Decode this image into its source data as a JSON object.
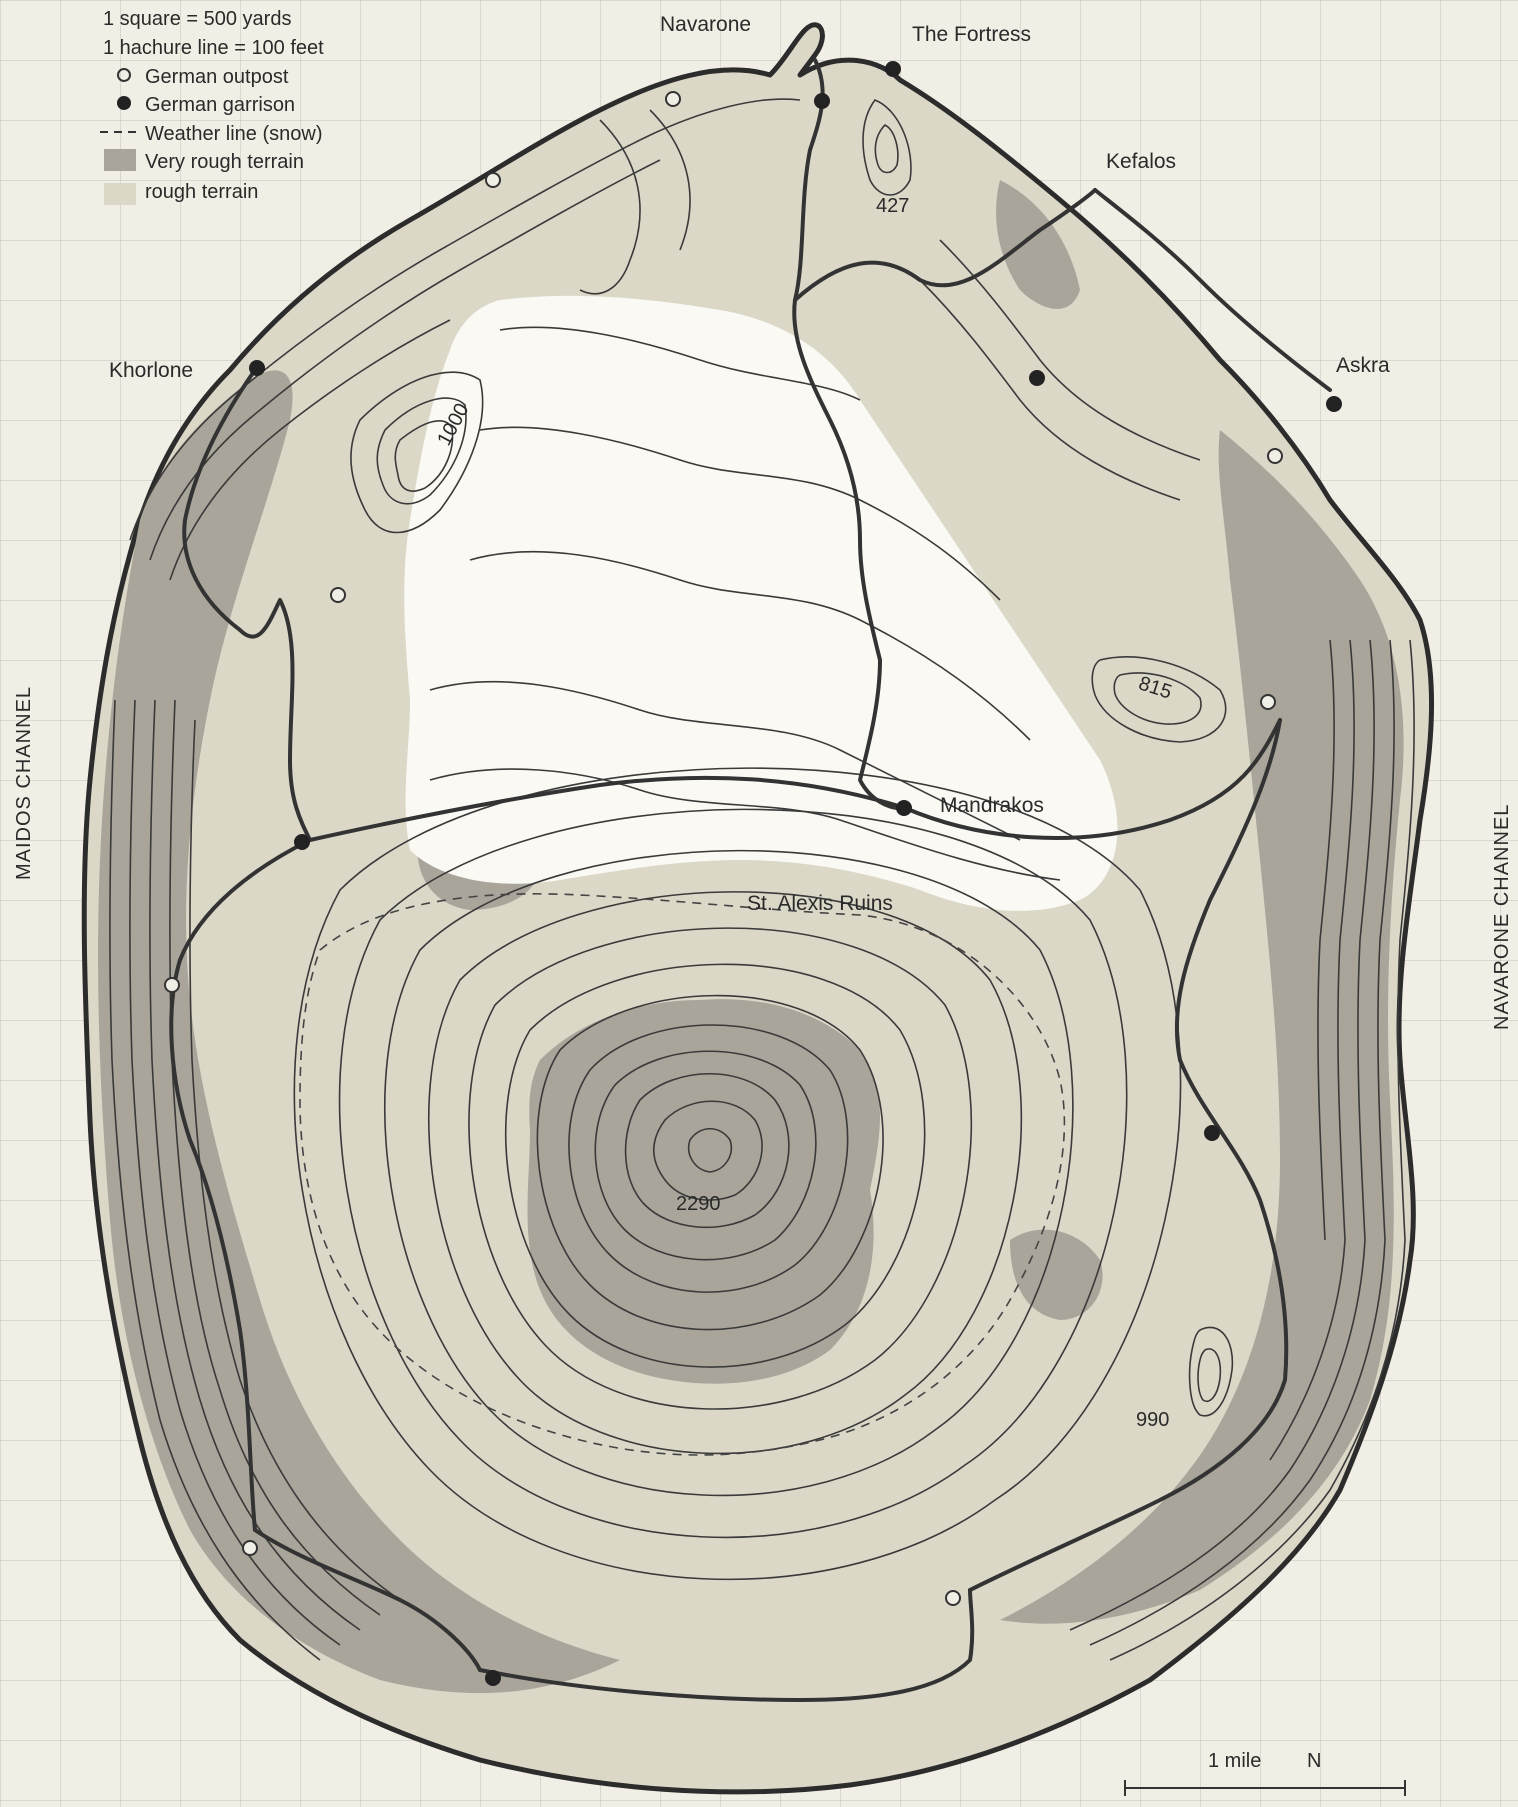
{
  "legend": {
    "scale_square": "1 square = 500 yards",
    "scale_hachure": "1 hachure line = 100 feet",
    "outpost": "German outpost",
    "garrison": "German garrison",
    "weather_line": "Weather line (snow)",
    "very_rough": "Very rough terrain",
    "rough": "rough terrain"
  },
  "places": {
    "navarone": "Navarone",
    "fortress": "The Fortress",
    "kefalos": "Kefalos",
    "askra": "Askra",
    "khorlone": "Khorlone",
    "mandrakos": "Mandrakos",
    "st_alexis": "St. Alexis Ruins"
  },
  "elevations": {
    "e427": "427",
    "e1000": "1000",
    "e815": "815",
    "e2290": "2290",
    "e990": "990"
  },
  "channels": {
    "west": "MAIDOS CHANNEL",
    "east": "NAVARONE CHANNEL"
  },
  "scale_bar": {
    "label": "1 mile",
    "north": "N"
  },
  "colors": {
    "water": "#f1efe5",
    "rough_terrain": "#dcd8c8",
    "very_rough_terrain": "#a9a59a",
    "plain": "#ffffff",
    "lines": "#333333"
  }
}
